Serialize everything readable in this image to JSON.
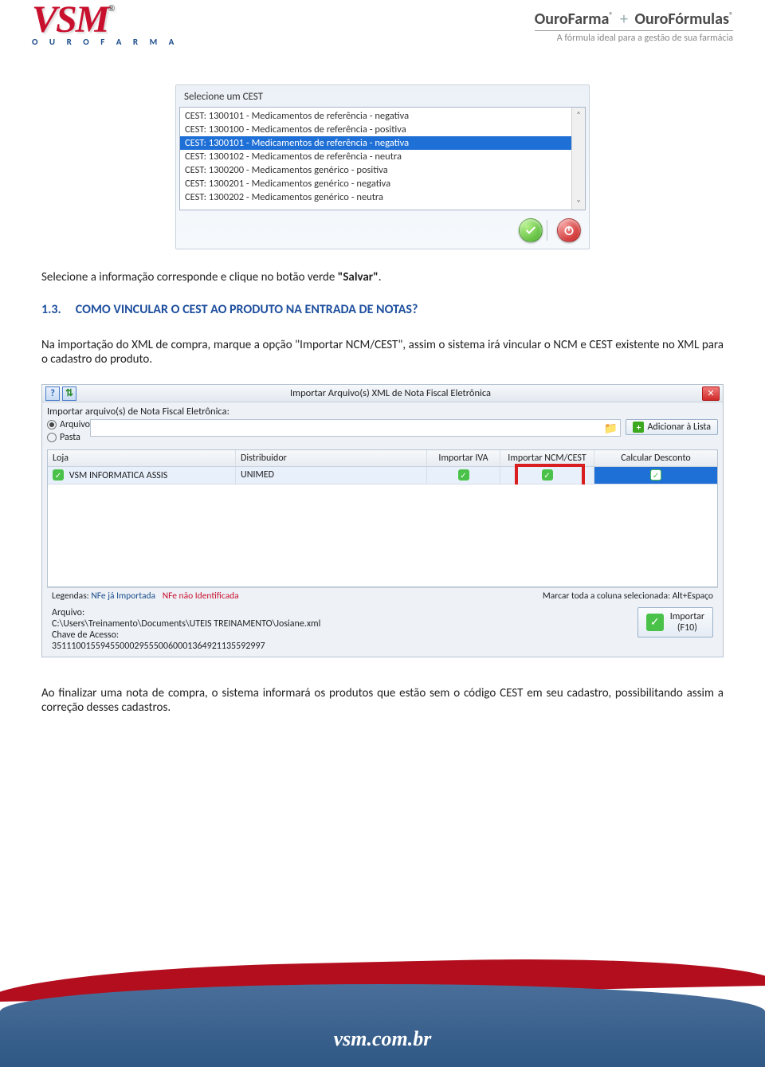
{
  "header": {
    "logo_text": "VSM",
    "logo_subtext": "O U R O F A R M A",
    "brand1": "OuroFarma",
    "brand_plus": "+",
    "brand2": "OuroFórmulas",
    "tagline": "A fórmula ideal para a gestão de sua farmácia"
  },
  "cestDialog": {
    "title": "Selecione um CEST",
    "items": [
      {
        "text": "CEST: 1300101 -  Medicamentos de referência - negativa",
        "selected": false
      },
      {
        "text": "CEST: 1300100 -  Medicamentos de referência - positiva",
        "selected": false
      },
      {
        "text": "CEST: 1300101 -  Medicamentos de referência - negativa",
        "selected": true
      },
      {
        "text": "CEST: 1300102 -  Medicamentos de referência - neutra",
        "selected": false
      },
      {
        "text": "CEST: 1300200 -  Medicamentos genérico - positiva",
        "selected": false
      },
      {
        "text": "CEST: 1300201 -  Medicamentos genérico - negativa",
        "selected": false
      },
      {
        "text": "CEST: 1300202 -  Medicamentos genérico - neutra",
        "selected": false
      }
    ]
  },
  "para1_a": "Selecione a informação corresponde e clique no botão verde ",
  "para1_b": "\"Salvar\"",
  "para1_c": ".",
  "section": {
    "num": "1.3.",
    "title": "COMO VINCULAR O CEST AO PRODUTO NA ENTRADA DE NOTAS?"
  },
  "para2": "Na importação do XML de compra, marque a opção \"Importar NCM/CEST\", assim o sistema irá vincular o NCM e CEST existente no XML para o cadastro do produto.",
  "xmlWindow": {
    "title": "Importar Arquivo(s) XML de Nota Fiscal Eletrônica",
    "label": "Importar arquivo(s) de Nota Fiscal Eletrônica:",
    "radio_arquivo": "Arquivo",
    "radio_pasta": "Pasta",
    "add_list": "Adicionar à Lista",
    "columns": {
      "loja": "Loja",
      "dist": "Distribuidor",
      "iva": "Importar IVA",
      "ncm": "Importar NCM/CEST",
      "desc": "Calcular Desconto"
    },
    "row": {
      "loja": "VSM INFORMATICA ASSIS",
      "dist": "UNIMED"
    },
    "legend_label": "Legendas:",
    "legend1": "NFe já Importada",
    "legend2": "NFe não Identificada",
    "legend_right": "Marcar toda a coluna selecionada: Alt+Espaço",
    "arquivo_label": "Arquivo:",
    "arquivo_path": "C:\\Users\\Treinamento\\Documents\\UTEIS TREINAMENTO\\Josiane.xml",
    "chave_label": "Chave de Acesso:",
    "chave_value": "35111001559455000295550060001364921135592997",
    "import_btn": "Importar",
    "import_key": "(F10)"
  },
  "para3": "Ao finalizar uma nota de compra, o sistema informará os produtos que estão sem o código CEST em seu cadastro, possibilitando assim a correção desses cadastros.",
  "footer_url": "vsm.com.br"
}
